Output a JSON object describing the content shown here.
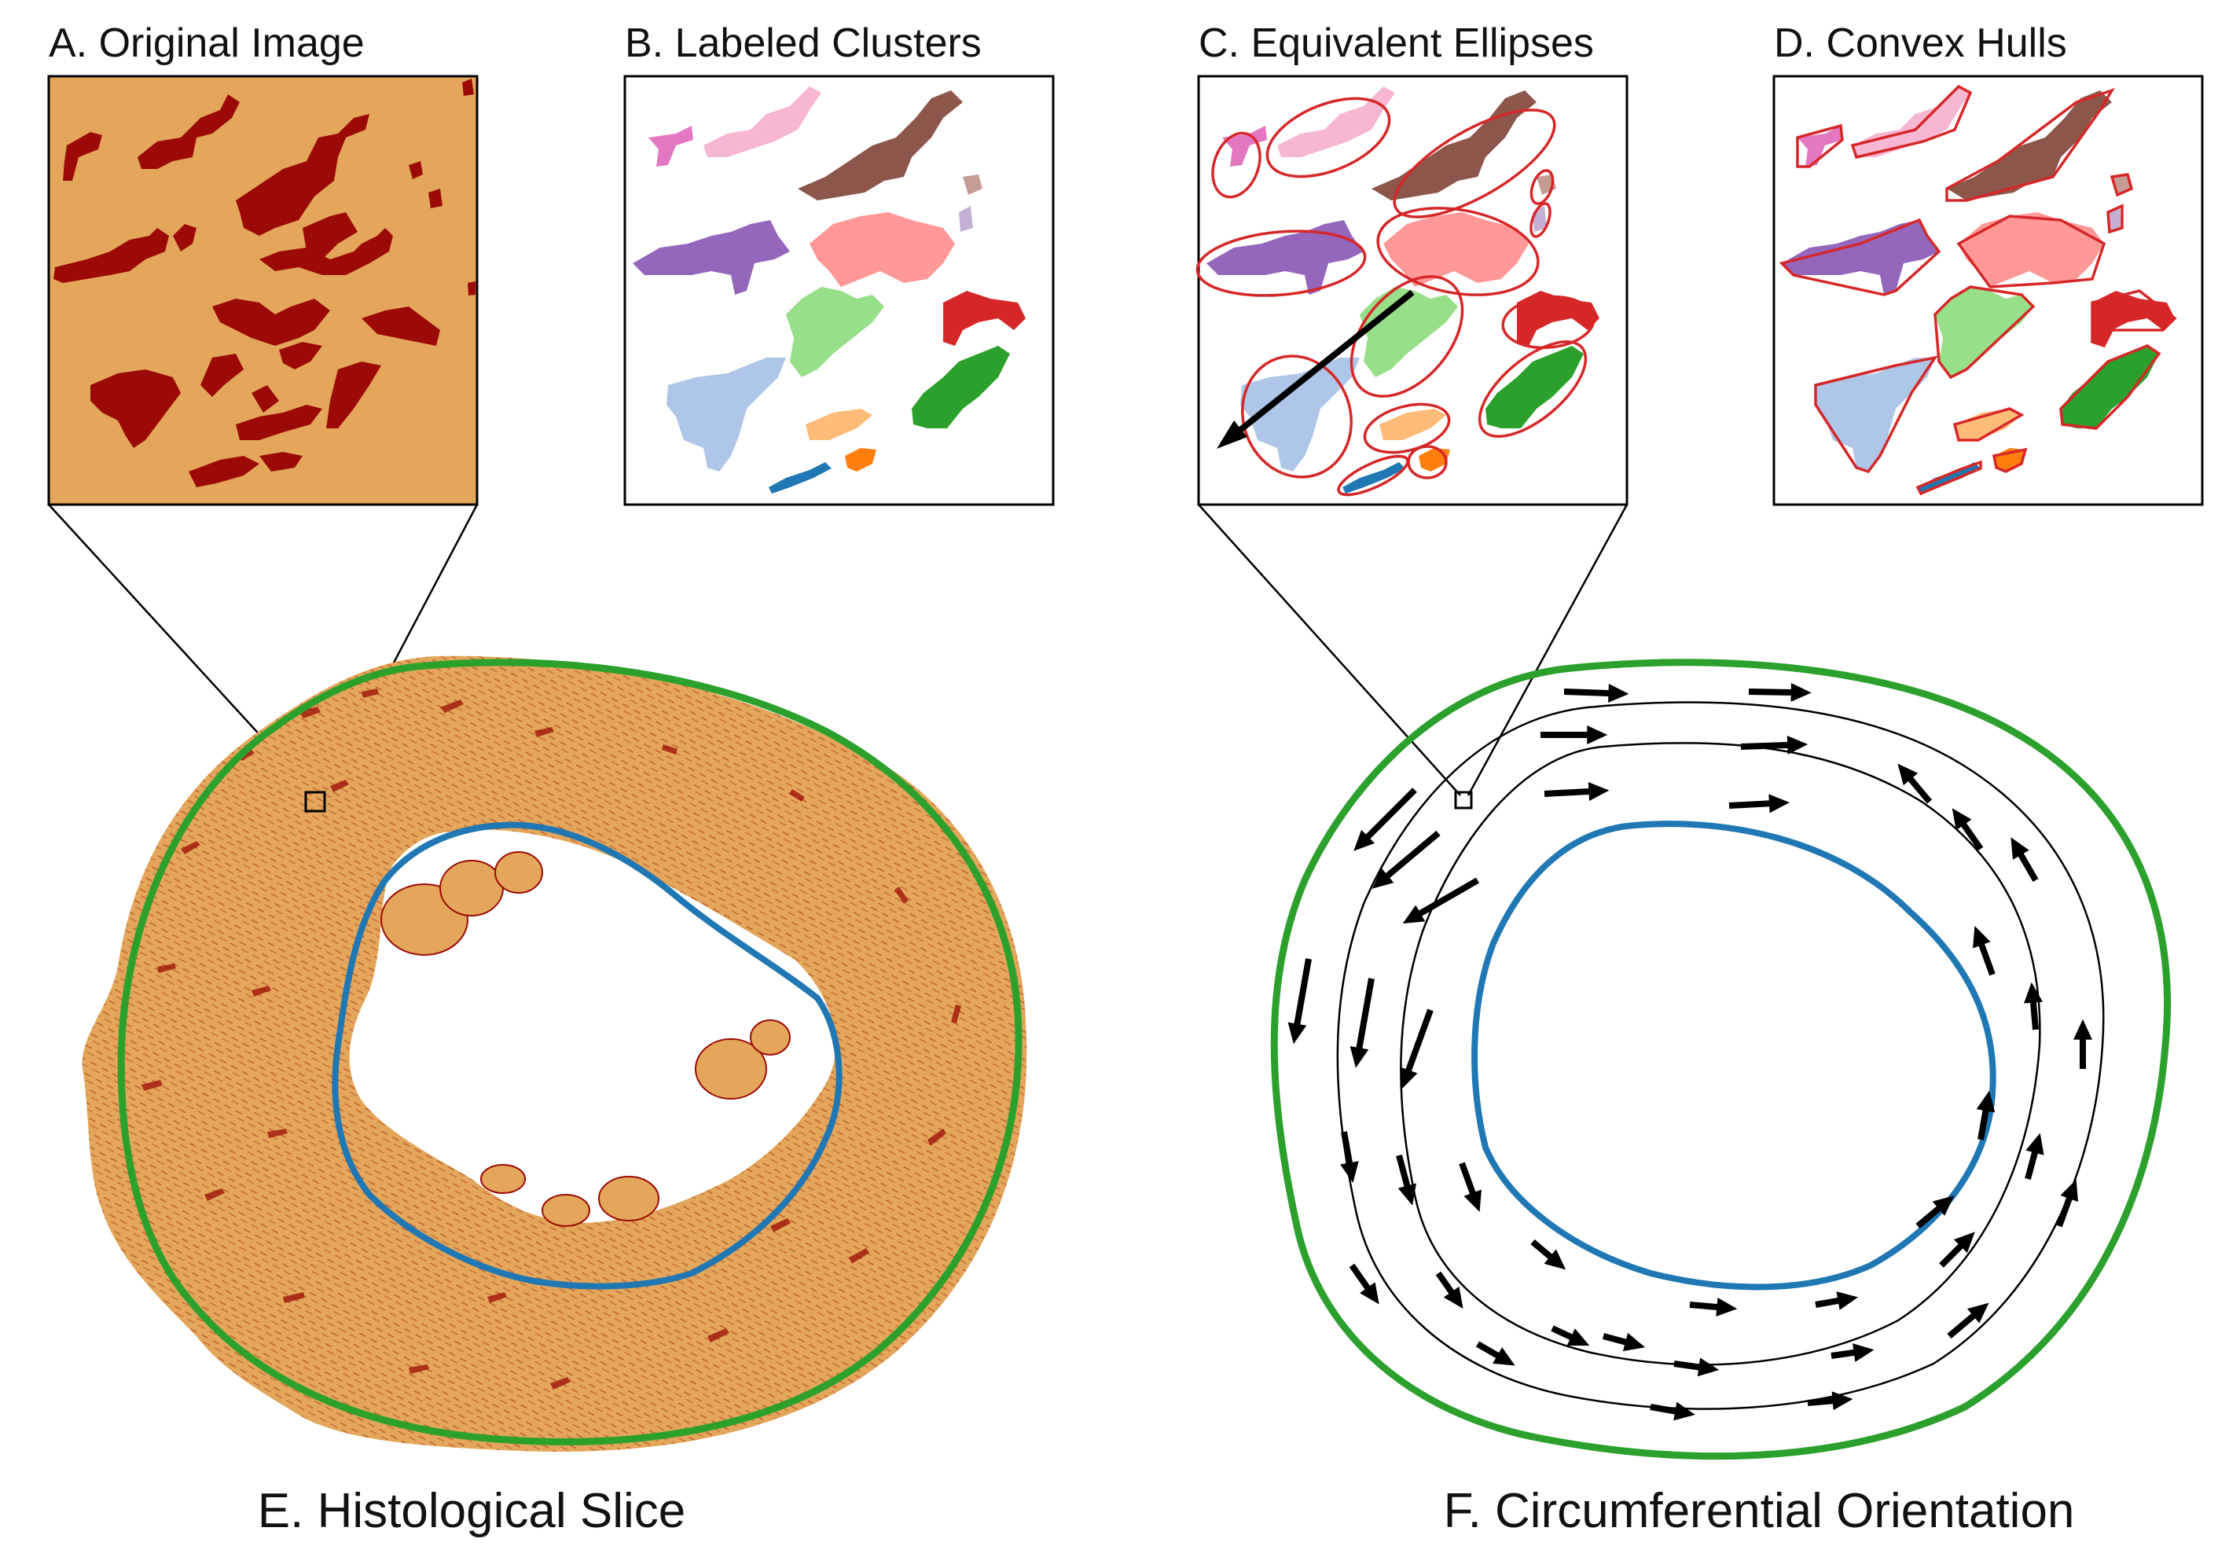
{
  "panels": {
    "a": {
      "title": "A. Original Image"
    },
    "b": {
      "title": "B. Labeled Clusters"
    },
    "c": {
      "title": "C. Equivalent Ellipses"
    },
    "d": {
      "title": "D. Convex Hulls"
    },
    "e": {
      "title": "E. Histological Slice"
    },
    "f": {
      "title": "F. Circumferential Orientation"
    }
  },
  "colors": {
    "tissue": "#e3a65a",
    "collagen": "#9b0a06",
    "epicardium": "#2ca02c",
    "endocardium": "#1f77b4",
    "ellipse": "#d62728",
    "arrow": "#000000"
  },
  "clusters": [
    {
      "name": "pink",
      "color": "#e377c2"
    },
    {
      "name": "light-pink",
      "color": "#f7b6d2"
    },
    {
      "name": "brown",
      "color": "#8c564b"
    },
    {
      "name": "tan",
      "color": "#c49c94"
    },
    {
      "name": "lavender",
      "color": "#c5b0d5"
    },
    {
      "name": "purple",
      "color": "#9467bd"
    },
    {
      "name": "salmon",
      "color": "#ff9896"
    },
    {
      "name": "light-green",
      "color": "#98df8a"
    },
    {
      "name": "red",
      "color": "#d62728"
    },
    {
      "name": "green",
      "color": "#2ca02c"
    },
    {
      "name": "light-blue",
      "color": "#aec7e8"
    },
    {
      "name": "peach",
      "color": "#ffbb78"
    },
    {
      "name": "orange",
      "color": "#ff7f0e"
    },
    {
      "name": "blue",
      "color": "#1f77b4"
    }
  ]
}
